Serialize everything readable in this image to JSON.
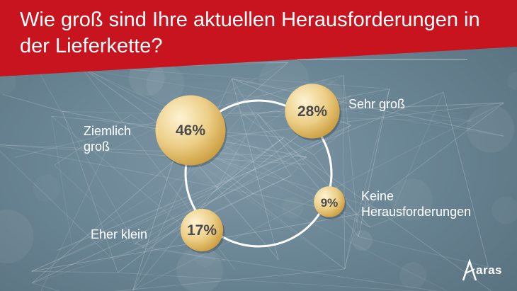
{
  "title": "Wie groß sind Ihre aktuellen Herausforderungen in der Lieferkette?",
  "colors": {
    "banner": "#c8141e",
    "bubble_light": "#fbeec4",
    "bubble_dark": "#c99a3a",
    "value_text": "#4a4a4a",
    "ring": "#ffffff"
  },
  "chart_data": {
    "type": "pie",
    "title": "Wie groß sind Ihre aktuellen Herausforderungen in der Lieferkette?",
    "categories": [
      "Ziemlich groß",
      "Sehr groß",
      "Keine Herausforderungen",
      "Eher klein"
    ],
    "values": [
      46,
      28,
      9,
      17
    ],
    "value_labels": [
      "46%",
      "28%",
      "9%",
      "17%"
    ],
    "labels": [
      {
        "line1": "Ziemlich",
        "line2": "groß"
      },
      {
        "line1": "Sehr groß",
        "line2": ""
      },
      {
        "line1": "Keine",
        "line2": "Herausforderungen"
      },
      {
        "line1": "Eher klein",
        "line2": ""
      }
    ],
    "unit": "%"
  },
  "logo": {
    "text": "aras",
    "icon": "aras-a-icon"
  }
}
